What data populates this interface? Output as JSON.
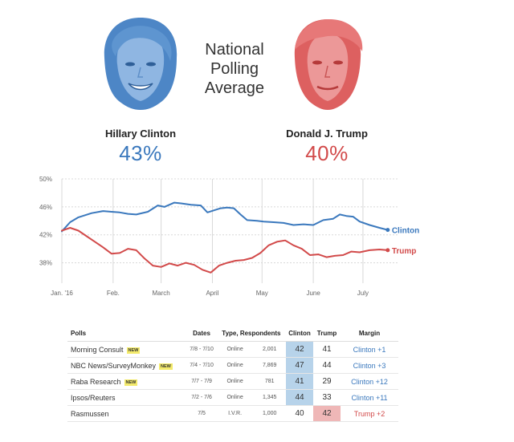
{
  "header": {
    "title": "National Polling Average",
    "candidates": [
      {
        "name": "Hillary Clinton",
        "pct": "43%"
      },
      {
        "name": "Donald J. Trump",
        "pct": "40%"
      }
    ]
  },
  "colors": {
    "clinton": "#3a78bd",
    "trump": "#d24a4a",
    "grid": "#d8d8d8",
    "axis_text": "#666666"
  },
  "chart_data": {
    "type": "line",
    "title": "National Polling Average",
    "xlabel": "",
    "ylabel": "",
    "ylim": [
      36,
      50
    ],
    "xlim": [
      0,
      200
    ],
    "y_ticks": [
      {
        "value": 38,
        "label": "38%"
      },
      {
        "value": 42,
        "label": "42%"
      },
      {
        "value": 46,
        "label": "46%"
      },
      {
        "value": 50,
        "label": "50%"
      }
    ],
    "x_ticks": [
      {
        "value": 0,
        "label": "Jan. '16"
      },
      {
        "value": 31,
        "label": "Feb."
      },
      {
        "value": 60,
        "label": "March"
      },
      {
        "value": 91,
        "label": "April"
      },
      {
        "value": 121,
        "label": "May"
      },
      {
        "value": 152,
        "label": "June"
      },
      {
        "value": 182,
        "label": "July"
      }
    ],
    "grid": true,
    "series": [
      {
        "name": "Clinton",
        "x": [
          0,
          5,
          10,
          18,
          25,
          30,
          35,
          40,
          45,
          52,
          58,
          62,
          68,
          72,
          78,
          84,
          88,
          92,
          96,
          100,
          104,
          108,
          112,
          118,
          122,
          128,
          134,
          140,
          146,
          152,
          158,
          164,
          168,
          172,
          176,
          180,
          186,
          192,
          197
        ],
        "values": [
          42.5,
          43.8,
          44.5,
          45.1,
          45.4,
          45.3,
          45.2,
          45.0,
          44.9,
          45.3,
          46.2,
          46.0,
          46.6,
          46.5,
          46.3,
          46.2,
          45.2,
          45.5,
          45.8,
          45.9,
          45.8,
          44.9,
          44.1,
          44.0,
          43.9,
          43.8,
          43.7,
          43.4,
          43.5,
          43.4,
          44.1,
          44.3,
          44.9,
          44.7,
          44.6,
          43.9,
          43.4,
          43.0,
          42.7
        ]
      },
      {
        "name": "Trump",
        "x": [
          0,
          5,
          10,
          15,
          20,
          25,
          30,
          35,
          40,
          45,
          50,
          55,
          60,
          65,
          70,
          75,
          80,
          85,
          90,
          95,
          100,
          105,
          110,
          115,
          120,
          125,
          130,
          135,
          140,
          145,
          150,
          155,
          160,
          165,
          170,
          175,
          180,
          186,
          192,
          197
        ],
        "values": [
          42.6,
          43.0,
          42.6,
          41.8,
          41.0,
          40.2,
          39.3,
          39.4,
          40.0,
          39.8,
          38.6,
          37.6,
          37.4,
          37.9,
          37.6,
          38.0,
          37.7,
          37.0,
          36.6,
          37.6,
          38.0,
          38.3,
          38.4,
          38.7,
          39.4,
          40.5,
          41.0,
          41.2,
          40.5,
          40.0,
          39.1,
          39.2,
          38.8,
          39.0,
          39.1,
          39.6,
          39.5,
          39.8,
          39.9,
          39.8
        ]
      }
    ]
  },
  "table": {
    "headers": {
      "poll": "Polls",
      "dates": "Dates",
      "type": "Type, Respondents",
      "clinton": "Clinton",
      "trump": "Trump",
      "margin": "Margin"
    },
    "new_badge": "NEW",
    "rows": [
      {
        "poll": "Morning Consult",
        "is_new": true,
        "dates": "7/8 - 7/10",
        "type": "Online",
        "respondents": "2,001",
        "clinton": "42",
        "trump": "41",
        "leader": "clinton",
        "margin": "Clinton +1"
      },
      {
        "poll": "NBC News/SurveyMonkey",
        "is_new": true,
        "dates": "7/4 - 7/10",
        "type": "Online",
        "respondents": "7,869",
        "clinton": "47",
        "trump": "44",
        "leader": "clinton",
        "margin": "Clinton +3"
      },
      {
        "poll": "Raba Research",
        "is_new": true,
        "dates": "7/7 - 7/9",
        "type": "Online",
        "respondents": "781",
        "clinton": "41",
        "trump": "29",
        "leader": "clinton",
        "margin": "Clinton +12"
      },
      {
        "poll": "Ipsos/Reuters",
        "is_new": false,
        "dates": "7/2 - 7/6",
        "type": "Online",
        "respondents": "1,345",
        "clinton": "44",
        "trump": "33",
        "leader": "clinton",
        "margin": "Clinton +11"
      },
      {
        "poll": "Rasmussen",
        "is_new": false,
        "dates": "7/5",
        "type": "I.V.R.",
        "respondents": "1,000",
        "clinton": "40",
        "trump": "42",
        "leader": "trump",
        "margin": "Trump +2"
      }
    ]
  }
}
